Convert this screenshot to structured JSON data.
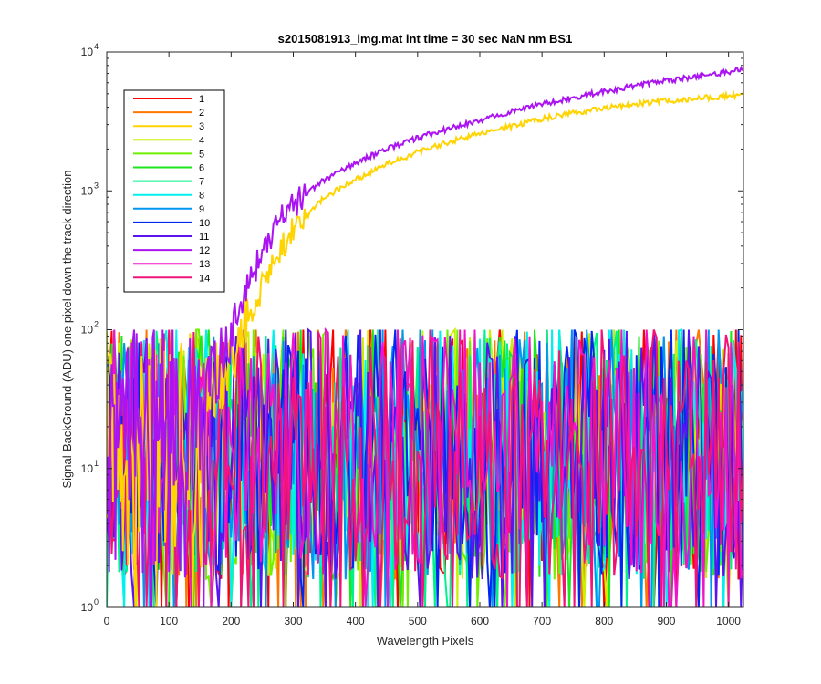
{
  "chart_data": {
    "type": "line",
    "title": "s2015081913_img.mat int time = 30 sec  NaN nm BS1",
    "xlabel": "Wavelength Pixels",
    "ylabel": "Signal-BackGround (ADU) one pixel down the track direction",
    "xlim": [
      0,
      1024
    ],
    "ylim": [
      1,
      10000
    ],
    "yscale": "log",
    "grid": false,
    "legend_placement": "top-left",
    "x_ticks": [
      "0",
      "100",
      "200",
      "300",
      "400",
      "500",
      "600",
      "700",
      "800",
      "900",
      "1000"
    ],
    "x_tick_values": [
      0,
      100,
      200,
      300,
      400,
      500,
      600,
      700,
      800,
      900,
      1000
    ],
    "y_ticks": [
      {
        "value": 1,
        "mantissa": "10",
        "exponent": "0"
      },
      {
        "value": 10,
        "mantissa": "10",
        "exponent": "1"
      },
      {
        "value": 100,
        "mantissa": "10",
        "exponent": "2"
      },
      {
        "value": 1000,
        "mantissa": "10",
        "exponent": "3"
      },
      {
        "value": 10000,
        "mantissa": "10",
        "exponent": "4"
      }
    ],
    "noise_band": {
      "x_range": [
        0,
        1024
      ],
      "y_range": [
        1,
        100
      ],
      "description_values": "noise-level signal between 1 and ~100 ADU"
    },
    "series": [
      {
        "name": "1",
        "color": "#ff0000",
        "kind": "noise"
      },
      {
        "name": "2",
        "color": "#ff7700",
        "kind": "noise"
      },
      {
        "name": "3",
        "color": "#ffd400",
        "kind": "signal",
        "x": [
          0,
          170,
          200,
          230,
          260,
          300,
          350,
          400,
          450,
          500,
          550,
          600,
          650,
          700,
          750,
          800,
          850,
          900,
          950,
          1000,
          1024
        ],
        "y": [
          30,
          40,
          60,
          130,
          260,
          520,
          900,
          1200,
          1550,
          1900,
          2250,
          2600,
          2900,
          3300,
          3650,
          3950,
          4200,
          4450,
          4650,
          4800,
          4900
        ]
      },
      {
        "name": "4",
        "color": "#c8f000",
        "kind": "noise"
      },
      {
        "name": "5",
        "color": "#6ef000",
        "kind": "noise"
      },
      {
        "name": "6",
        "color": "#1ee61e",
        "kind": "noise"
      },
      {
        "name": "7",
        "color": "#00f08c",
        "kind": "noise"
      },
      {
        "name": "8",
        "color": "#00f0f0",
        "kind": "noise"
      },
      {
        "name": "9",
        "color": "#0096f0",
        "kind": "noise"
      },
      {
        "name": "10",
        "color": "#0028f0",
        "kind": "noise"
      },
      {
        "name": "11",
        "color": "#5a14f0",
        "kind": "noise"
      },
      {
        "name": "12",
        "color": "#aa14f0",
        "kind": "signal",
        "x": [
          0,
          160,
          180,
          200,
          230,
          260,
          300,
          350,
          400,
          450,
          500,
          550,
          600,
          650,
          700,
          750,
          800,
          850,
          900,
          950,
          1000,
          1024
        ],
        "y": [
          30,
          40,
          60,
          110,
          220,
          450,
          800,
          1200,
          1600,
          2000,
          2400,
          2800,
          3200,
          3700,
          4200,
          4700,
          5200,
          5700,
          6200,
          6700,
          7200,
          7500
        ]
      },
      {
        "name": "13",
        "color": "#f014c8",
        "kind": "noise"
      },
      {
        "name": "14",
        "color": "#f01478",
        "kind": "noise"
      }
    ]
  }
}
